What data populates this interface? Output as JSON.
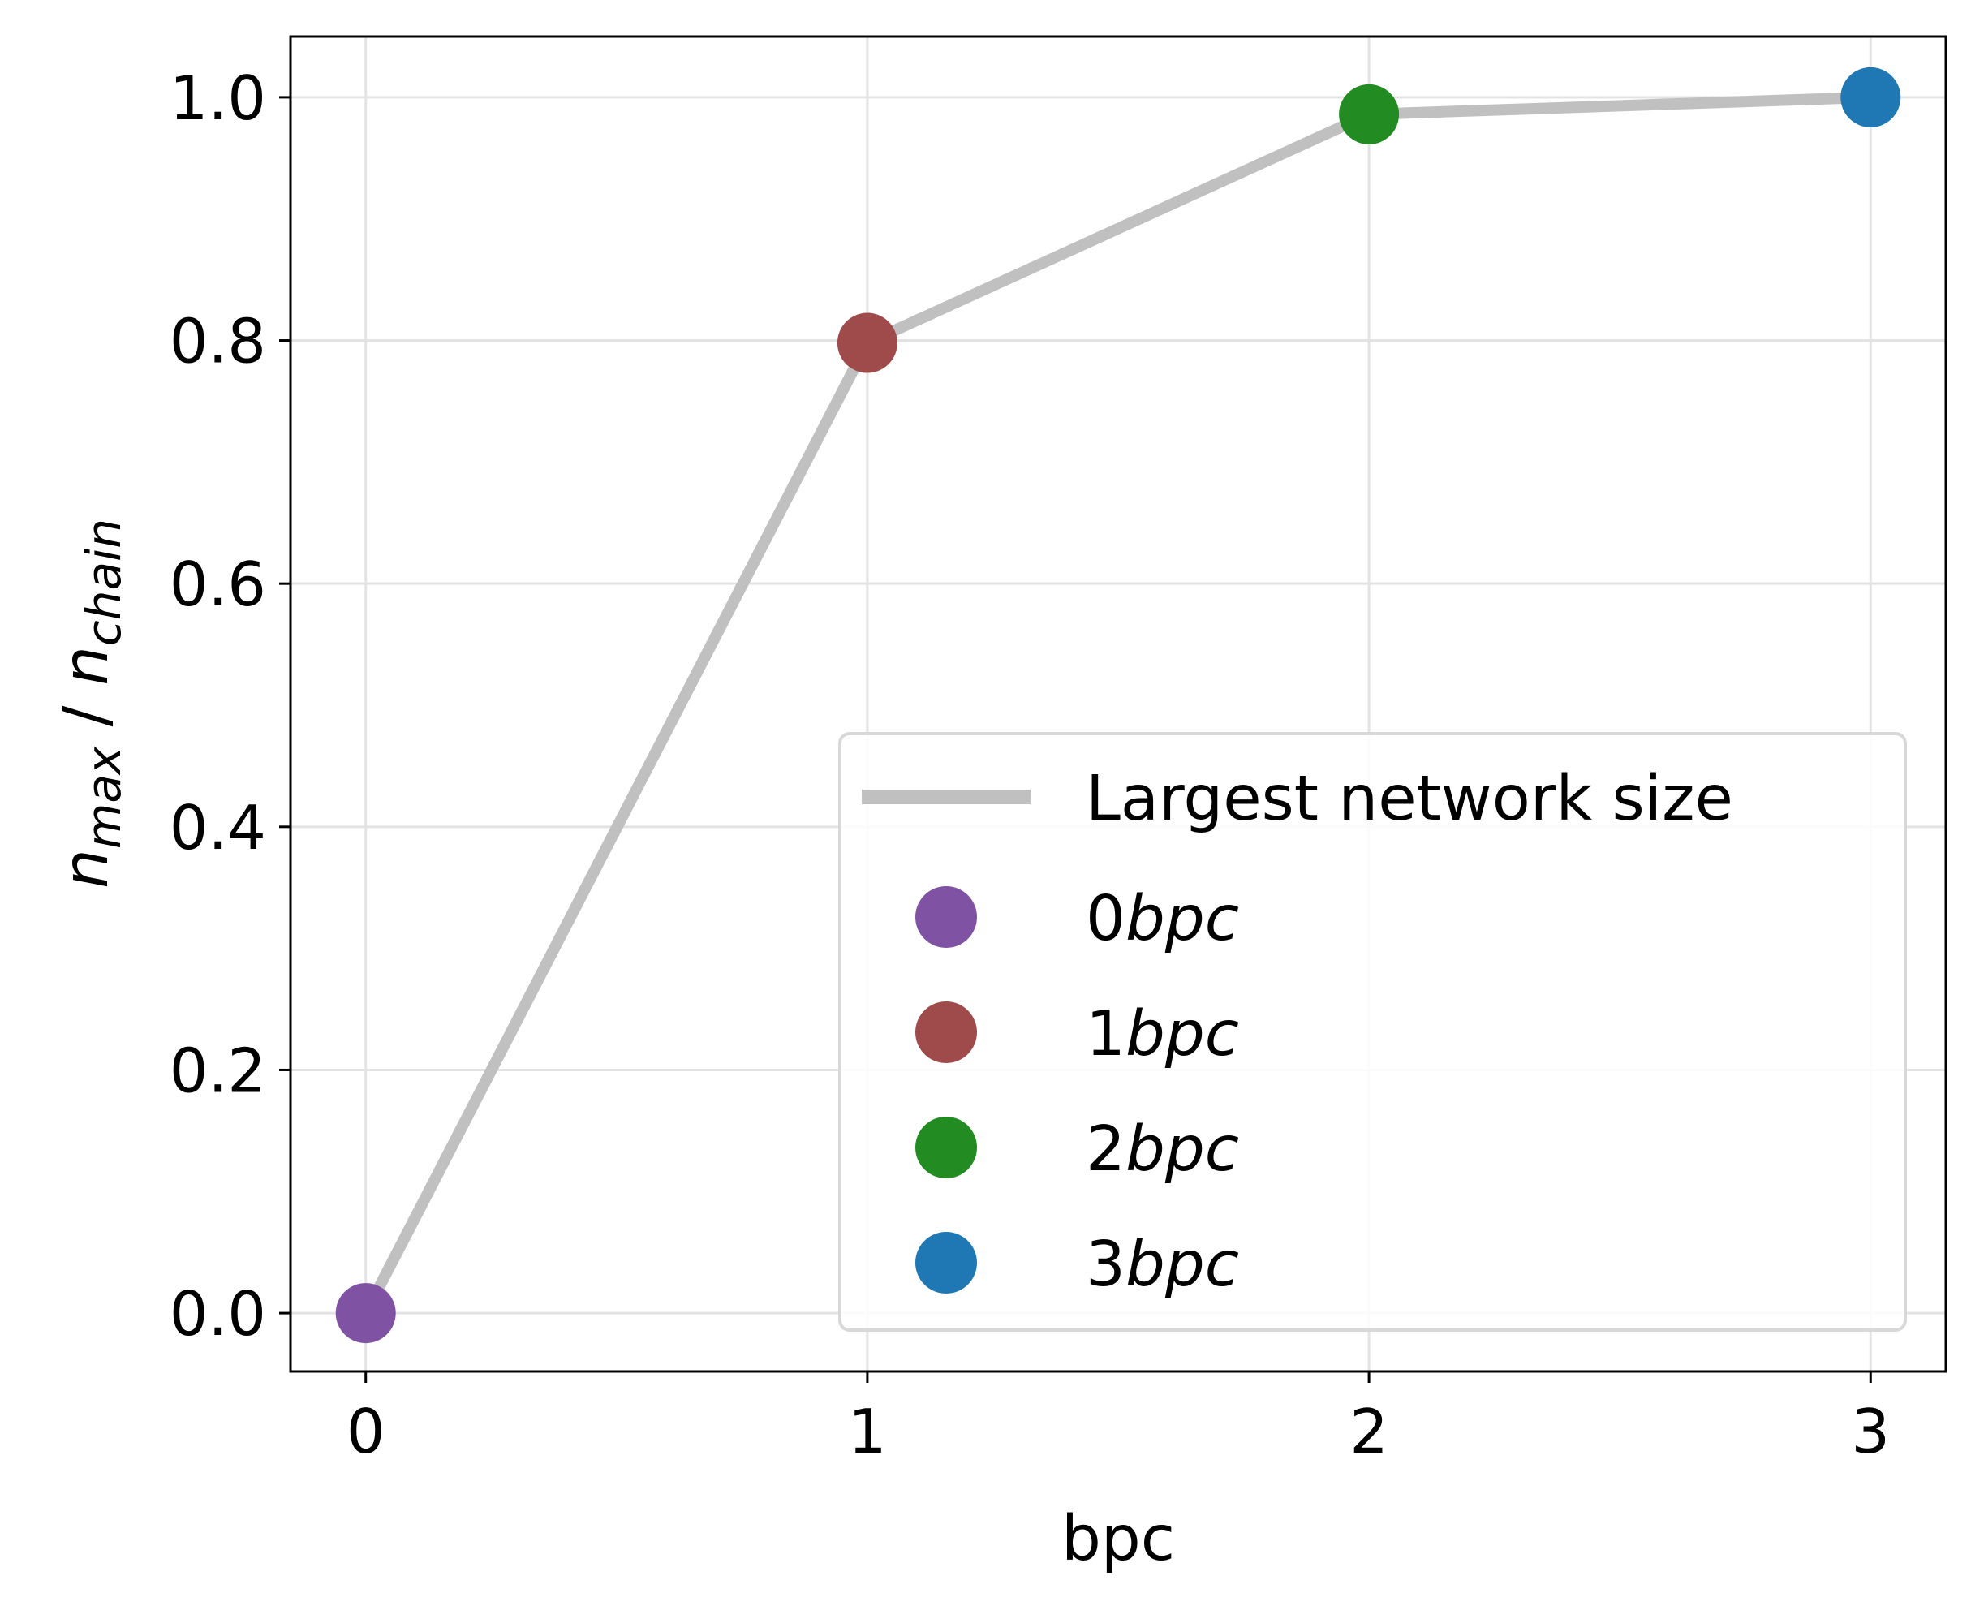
{
  "chart_data": {
    "type": "line",
    "title": "",
    "xlabel": "bpc",
    "ylabel": {
      "main1": "n",
      "sub1": "max",
      "sep": " / ",
      "main2": "n",
      "sub2": "chain"
    },
    "xlim": [
      -0.15,
      3.15
    ],
    "ylim": [
      -0.048,
      1.05
    ],
    "xticks": [
      0,
      1,
      2,
      3
    ],
    "xtick_labels": [
      "0",
      "1",
      "2",
      "3"
    ],
    "yticks": [
      0.0,
      0.2,
      0.4,
      0.6,
      0.8,
      1.0
    ],
    "ytick_labels": [
      "0.0",
      "0.2",
      "0.4",
      "0.6",
      "0.8",
      "1.0"
    ],
    "grid": true,
    "legend_position": "lower-right",
    "line_series": {
      "name": "Largest network size",
      "color": "#c0c0c0",
      "x": [
        0,
        1,
        2,
        3
      ],
      "y": [
        0.0,
        0.798,
        0.986,
        1.0
      ]
    },
    "points": [
      {
        "name_num": "0",
        "name_it": "bpc",
        "x": 0,
        "y": 0.0,
        "color": "#7f52a3"
      },
      {
        "name_num": "1",
        "name_it": "bpc",
        "x": 1,
        "y": 0.798,
        "color": "#a04b4b"
      },
      {
        "name_num": "2",
        "name_it": "bpc",
        "x": 2,
        "y": 0.986,
        "color": "#228b22"
      },
      {
        "name_num": "3",
        "name_it": "bpc",
        "x": 3,
        "y": 1.0,
        "color": "#1f77b4"
      }
    ]
  }
}
